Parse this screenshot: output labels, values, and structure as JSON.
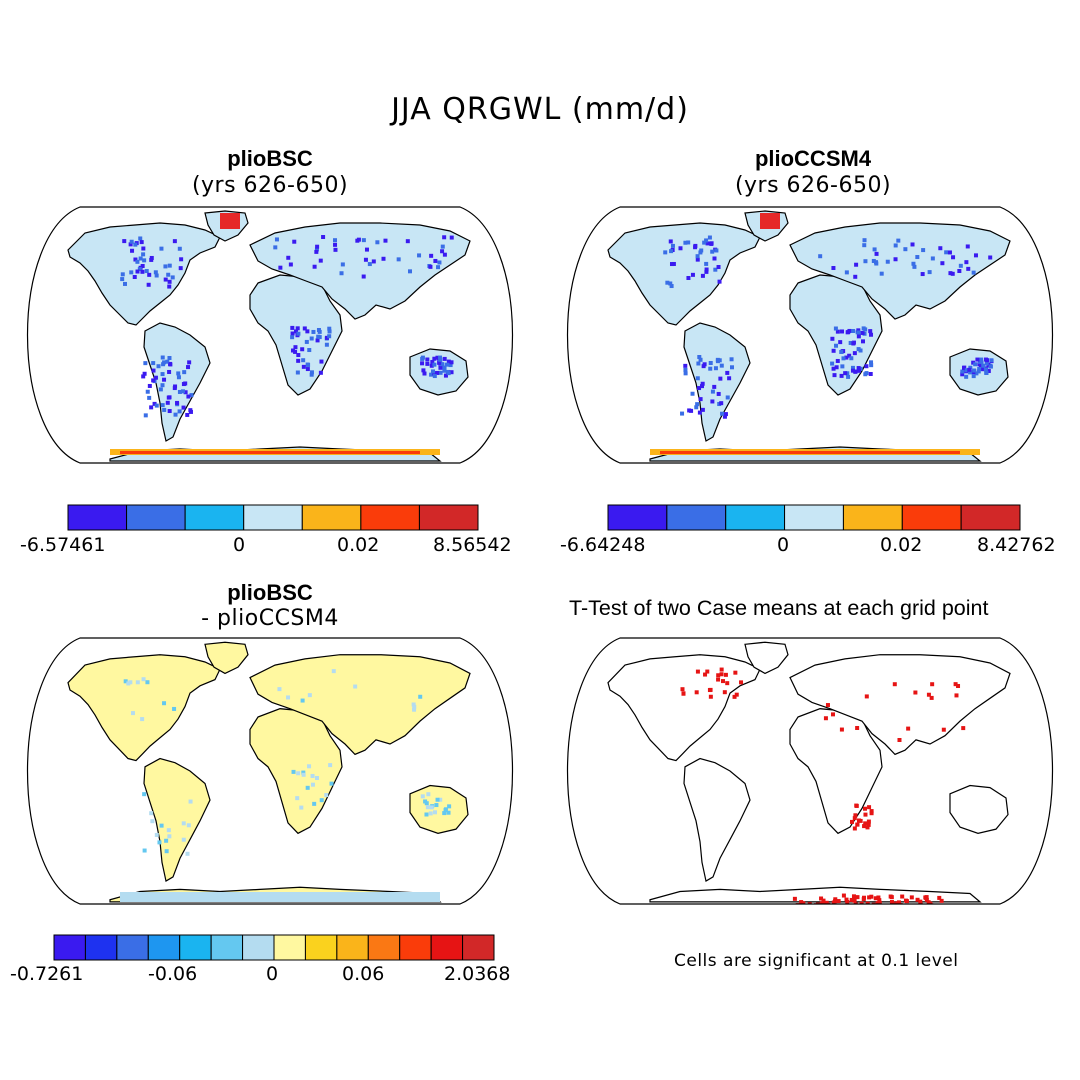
{
  "title": "JJA QRGWL (mm/d)",
  "panels": [
    {
      "id": "plioBSC",
      "title": "plioBSC",
      "subtitle": "(yrs 626-650)",
      "colorbar": {
        "colors": [
          "#3a1af0",
          "#3a6ee6",
          "#1ab4f0",
          "#c8e6f5",
          "#fab41a",
          "#fa3c0a",
          "#d22828"
        ],
        "labels": [
          "-6.57461",
          "0",
          "0.02",
          "8.56542"
        ]
      }
    },
    {
      "id": "plioCCSM4",
      "title": "plioCCSM4",
      "subtitle": "(yrs 626-650)",
      "colorbar": {
        "colors": [
          "#3a1af0",
          "#3a6ee6",
          "#1ab4f0",
          "#c8e6f5",
          "#fab41a",
          "#fa3c0a",
          "#d22828"
        ],
        "labels": [
          "-6.64248",
          "0",
          "0.02",
          "8.42762"
        ]
      }
    },
    {
      "id": "difference",
      "title": "plioBSC",
      "subtitle": "- plioCCSM4",
      "colorbar": {
        "colors": [
          "#3a1af0",
          "#1e32f0",
          "#3a6ee6",
          "#1e96f0",
          "#1ab4f0",
          "#64c8f0",
          "#b4dcf0",
          "#fff8a0",
          "#fad21e",
          "#fab41a",
          "#fa7814",
          "#fa3c0a",
          "#e61414",
          "#d22828"
        ],
        "labels": [
          "-0.7261",
          "-0.06",
          "0",
          "0.06",
          "2.0368"
        ]
      }
    },
    {
      "id": "ttest",
      "title": "T-Test of two Case means at each grid point",
      "note": "Cells are significant at 0.1 level",
      "sig_color": "#e61414"
    }
  ],
  "land_fill": {
    "plioBSC": "#c8e6f5",
    "plioCCSM4": "#c8e6f5",
    "difference": "#fff8a0",
    "ttest": "#ffffff"
  }
}
